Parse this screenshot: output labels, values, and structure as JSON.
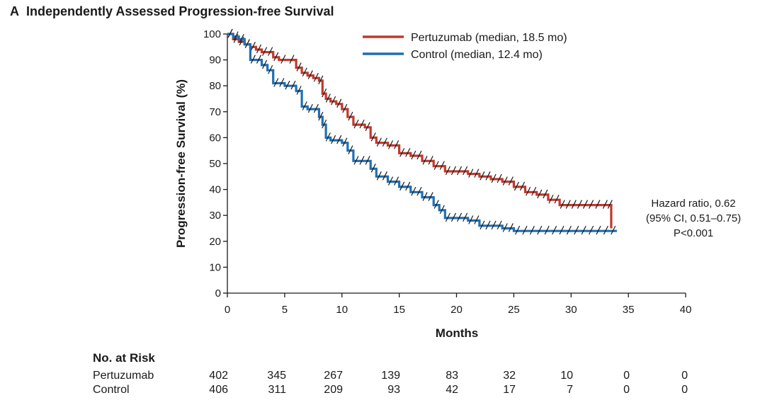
{
  "panel": {
    "letter": "A",
    "title": "Independently Assessed Progression-free Survival"
  },
  "chart_data": {
    "type": "line",
    "step": true,
    "title": "Independently Assessed Progression-free Survival",
    "xlabel": "Months",
    "ylabel": "Progression-free Survival (%)",
    "xlim": [
      0,
      40
    ],
    "ylim": [
      0,
      100
    ],
    "xticks": [
      0,
      5,
      10,
      15,
      20,
      25,
      30,
      35,
      40
    ],
    "yticks": [
      0,
      10,
      20,
      30,
      40,
      50,
      60,
      70,
      80,
      90,
      100
    ],
    "legend_position": "top",
    "series": [
      {
        "name": "Pertuzumab (median, 18.5 mo)",
        "color": "#c0392b",
        "x": [
          0,
          0.5,
          1.0,
          1.5,
          2.0,
          2.5,
          3.0,
          4.0,
          4.5,
          6.0,
          6.5,
          7.0,
          7.5,
          8.0,
          8.3,
          8.6,
          9.0,
          9.5,
          10.0,
          10.5,
          11.0,
          12.0,
          12.5,
          13.0,
          14.0,
          15.0,
          16.0,
          17.0,
          18.0,
          19.0,
          20.0,
          21.0,
          22.0,
          23.0,
          24.0,
          25.0,
          26.0,
          27.0,
          28.0,
          29.0,
          30.0,
          31.0,
          32.0,
          33.3,
          33.5
        ],
        "values": [
          100,
          98,
          97,
          96,
          95,
          94,
          93,
          91,
          90,
          87,
          85,
          84,
          83,
          82,
          77,
          75,
          74,
          73,
          71,
          68,
          65,
          64,
          60,
          58,
          57,
          54,
          53,
          51,
          49,
          47,
          47,
          46,
          45,
          44,
          43,
          41,
          39,
          38,
          36,
          34,
          34,
          34,
          34,
          34,
          25
        ]
      },
      {
        "name": "Control (median, 12.4 mo)",
        "color": "#1f6fb2",
        "x": [
          0,
          0.5,
          1.0,
          1.5,
          2.0,
          3.0,
          3.5,
          4.0,
          5.0,
          6.0,
          6.5,
          7.0,
          8.0,
          8.3,
          8.6,
          9.0,
          10.0,
          10.5,
          11.0,
          12.0,
          12.5,
          13.0,
          14.0,
          15.0,
          16.0,
          17.0,
          18.0,
          18.5,
          19.0,
          20.0,
          21.0,
          22.0,
          23.0,
          24.0,
          25.0,
          34.0
        ],
        "values": [
          100,
          99,
          98,
          96,
          90,
          88,
          86,
          81,
          80,
          78,
          72,
          71,
          68,
          65,
          60,
          59,
          58,
          55,
          51,
          51,
          48,
          45,
          43,
          41,
          39,
          37,
          34,
          32,
          29,
          29,
          28,
          26,
          26,
          25,
          24,
          24
        ]
      }
    ],
    "annotations": [
      "Hazard ratio, 0.62",
      "(95% CI, 0.51–0.75)",
      "P<0.001"
    ]
  },
  "risk_table": {
    "title": "No. at Risk",
    "rows": [
      {
        "label": "Pertuzumab",
        "values": [
          "402",
          "345",
          "267",
          "139",
          "83",
          "32",
          "10",
          "0",
          "0"
        ]
      },
      {
        "label": "Control",
        "values": [
          "406",
          "311",
          "209",
          "93",
          "42",
          "17",
          "7",
          "0",
          "0"
        ]
      }
    ]
  }
}
